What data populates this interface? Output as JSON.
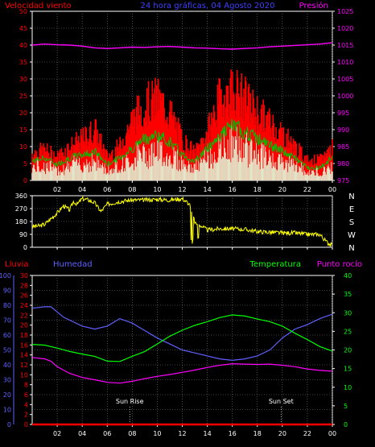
{
  "chart_data": [
    {
      "id": "wind_pressure",
      "type": "line",
      "title": "24 hora gráficas, 04 Agosto 2020",
      "left_label": "Velocidad viento",
      "right_label": "Presión",
      "x_ticks": [
        "02",
        "04",
        "06",
        "08",
        "10",
        "12",
        "14",
        "16",
        "18",
        "20",
        "22",
        "00"
      ],
      "y_left_ticks": [
        "0",
        "5",
        "10",
        "15",
        "20",
        "25",
        "30",
        "35",
        "40",
        "45",
        "50"
      ],
      "y_right_ticks": [
        "975",
        "980",
        "985",
        "990",
        "995",
        "1000",
        "1005",
        "1010",
        "1015",
        "1020",
        "1025"
      ],
      "ylim_left": [
        0,
        50
      ],
      "ylim_right": [
        975,
        1025
      ],
      "series": [
        {
          "key": "gust",
          "color": "#ff0000",
          "axis": "left",
          "x": [
            0,
            1,
            2,
            3,
            4,
            5,
            6,
            7,
            8,
            9,
            10,
            11,
            12,
            13,
            14,
            15,
            16,
            17,
            18,
            19,
            20,
            21,
            22,
            23,
            24
          ],
          "y": [
            8,
            9,
            7,
            10,
            12,
            15,
            7,
            10,
            18,
            22,
            24,
            20,
            12,
            8,
            14,
            24,
            27,
            24,
            20,
            17,
            14,
            10,
            6,
            6,
            10
          ]
        },
        {
          "key": "avg",
          "color": "#00c000",
          "axis": "left",
          "x": [
            0,
            1,
            2,
            3,
            4,
            5,
            6,
            7,
            8,
            9,
            10,
            11,
            12,
            13,
            14,
            15,
            16,
            17,
            18,
            19,
            20,
            21,
            22,
            23,
            24
          ],
          "y": [
            6,
            7,
            5,
            7,
            8,
            9,
            5,
            7,
            10,
            13,
            14,
            12,
            8,
            6,
            10,
            14,
            17,
            15,
            13,
            11,
            9,
            7,
            4,
            4,
            7
          ]
        },
        {
          "key": "pressure",
          "color": "#ff00ff",
          "axis": "right",
          "x": [
            0,
            1,
            2,
            3,
            4,
            5,
            6,
            7,
            8,
            9,
            10,
            11,
            12,
            13,
            14,
            15,
            16,
            17,
            18,
            19,
            20,
            21,
            22,
            23,
            24
          ],
          "y": [
            1015,
            1015.3,
            1015.1,
            1015,
            1014.7,
            1014.2,
            1014,
            1014.2,
            1014.4,
            1014.3,
            1014.5,
            1014.6,
            1014.4,
            1014.2,
            1014.1,
            1013.9,
            1013.8,
            1014,
            1014.2,
            1014.5,
            1014.7,
            1014.9,
            1015.1,
            1015.3,
            1015.7
          ]
        }
      ]
    },
    {
      "id": "direction",
      "type": "line",
      "y_left_ticks": [
        "0",
        "90",
        "180",
        "270",
        "360"
      ],
      "y_right_ticks": [
        "N",
        "W",
        "S",
        "E",
        "N"
      ],
      "ylim": [
        0,
        360
      ],
      "series": [
        {
          "key": "dir",
          "color": "#ffff00",
          "x": [
            0,
            0.6,
            1,
            1.5,
            2,
            2.5,
            3,
            3.3,
            3.6,
            4,
            4.5,
            5,
            5.5,
            6,
            7,
            8,
            9,
            10,
            11,
            12,
            12.6,
            13,
            13.5,
            14,
            15,
            16,
            17,
            18,
            19,
            20,
            21,
            22,
            23,
            23.5,
            24
          ],
          "y": [
            145,
            150,
            160,
            200,
            240,
            290,
            260,
            320,
            300,
            340,
            330,
            310,
            250,
            300,
            320,
            330,
            330,
            335,
            330,
            340,
            300,
            180,
            150,
            120,
            130,
            130,
            125,
            110,
            105,
            100,
            100,
            90,
            90,
            40,
            10
          ]
        }
      ]
    },
    {
      "id": "temp_hum",
      "type": "line",
      "left_label": "Lluvia",
      "left2_label": "Humedad",
      "right_label": "Temperatura",
      "right2_label": "Punto rocío",
      "annotations": [
        "Sun Rise",
        "Sun Set"
      ],
      "x_ticks": [
        "02",
        "04",
        "06",
        "08",
        "10",
        "12",
        "14",
        "16",
        "18",
        "20",
        "22",
        "00"
      ],
      "y_rain_ticks": [
        "0",
        "2",
        "4",
        "6",
        "8",
        "10",
        "12",
        "14",
        "16",
        "18",
        "20",
        "22",
        "24",
        "26",
        "28",
        "30"
      ],
      "y_hum_ticks": [
        "0",
        "10",
        "20",
        "30",
        "40",
        "50",
        "60",
        "70",
        "80",
        "90",
        "100"
      ],
      "y_temp_ticks": [
        "0",
        "5",
        "10",
        "15",
        "20",
        "25",
        "30",
        "35",
        "40"
      ],
      "ylim_rain": [
        0,
        30
      ],
      "ylim_hum": [
        0,
        100
      ],
      "ylim_temp": [
        0,
        40
      ],
      "series": [
        {
          "key": "humidity",
          "color": "#6060ff",
          "axis": "hum",
          "x": [
            0,
            1,
            1.5,
            2.5,
            3,
            4,
            5,
            6,
            7,
            8,
            9,
            10,
            11,
            12,
            13,
            14,
            15,
            16,
            17,
            18,
            19,
            20,
            21,
            22,
            23,
            24
          ],
          "y": [
            78,
            79,
            79,
            72,
            70,
            66,
            64,
            66,
            71,
            68,
            63,
            58,
            54,
            50,
            48,
            46,
            44,
            43,
            44,
            46,
            50,
            58,
            64,
            67,
            71,
            74
          ]
        },
        {
          "key": "temperature",
          "color": "#00ff00",
          "axis": "temp",
          "x": [
            0,
            1,
            2,
            3,
            4,
            5,
            6,
            7,
            8,
            9,
            10,
            11,
            12,
            13,
            14,
            15,
            16,
            17,
            18,
            19,
            20,
            21,
            22,
            23,
            24
          ],
          "y": [
            21.5,
            21.3,
            20.5,
            19.6,
            18.9,
            18.3,
            17,
            16.9,
            18.3,
            19.6,
            21.6,
            23.7,
            25.3,
            26.6,
            27.6,
            28.7,
            29.4,
            29.1,
            28.3,
            27.6,
            26.4,
            24.5,
            22.8,
            20.9,
            19.7
          ]
        },
        {
          "key": "dewpoint",
          "color": "#ff00ff",
          "axis": "temp",
          "x": [
            0,
            1,
            1.5,
            2,
            3,
            4,
            5,
            6,
            7,
            8,
            9,
            10,
            11,
            12,
            13,
            14,
            15,
            16,
            17,
            18,
            19,
            20,
            21,
            22,
            23,
            24
          ],
          "y": [
            18,
            17.6,
            17,
            15.5,
            13.7,
            12.6,
            12,
            11.3,
            11.1,
            11.6,
            12.3,
            12.9,
            13.4,
            14,
            14.6,
            15.3,
            15.9,
            16.3,
            16.2,
            16.1,
            16.2,
            15.9,
            15.5,
            14.9,
            14.5,
            14.3
          ]
        },
        {
          "key": "rain",
          "color": "#ff0000",
          "axis": "rain",
          "x": [
            0,
            24
          ],
          "y": [
            0,
            0
          ]
        }
      ],
      "sun": [
        {
          "label": "Sun Rise",
          "x": 7.8
        },
        {
          "label": "Sun Set",
          "x": 19.9
        }
      ]
    }
  ]
}
